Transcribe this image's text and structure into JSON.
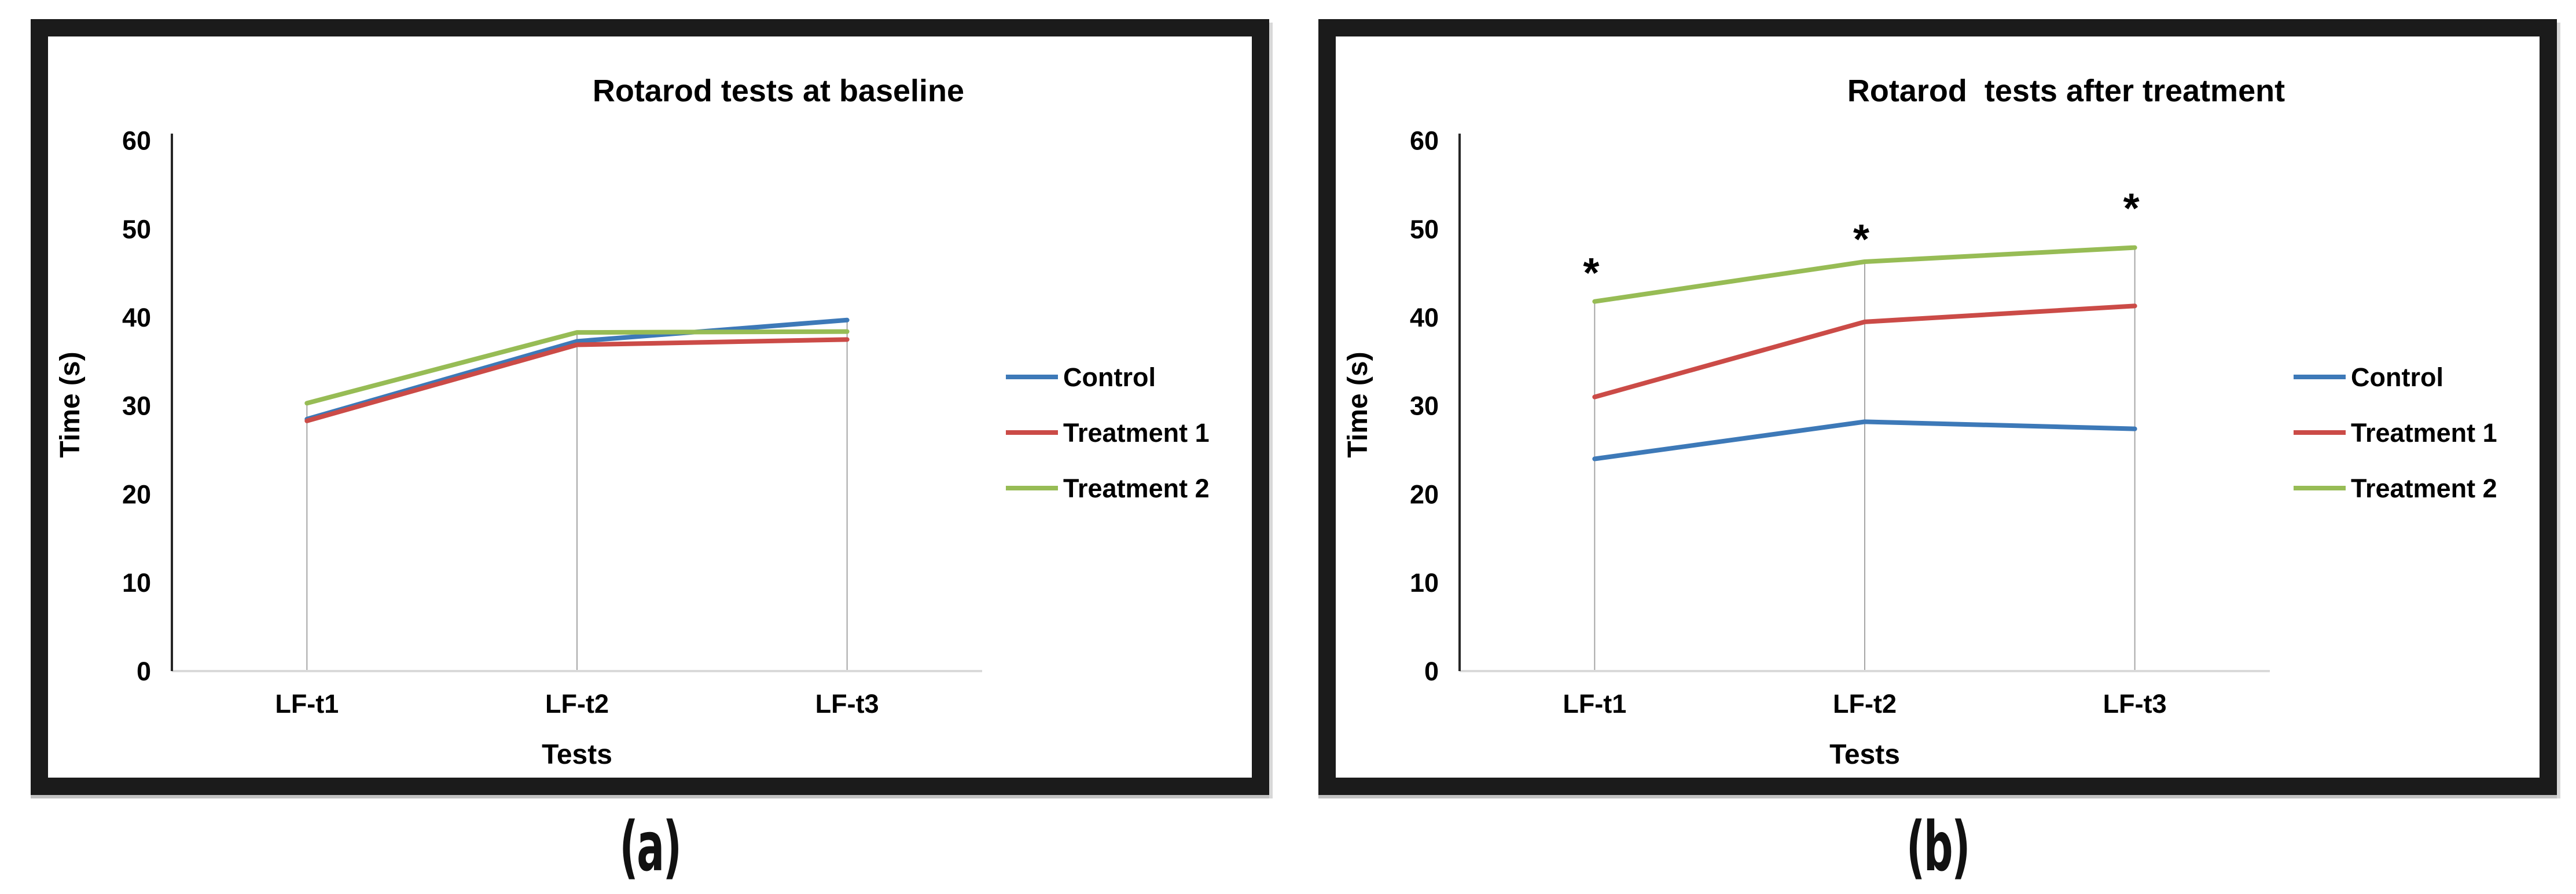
{
  "page": {
    "background": "#ffffff",
    "frame_color": "#1b1b1b"
  },
  "captions": {
    "a": "(a)",
    "b": "(b)"
  },
  "colors": {
    "control": "#3D79B8",
    "treatment1": "#CB4B47",
    "treatment2": "#97BC55",
    "gridline": "#A6A6A6",
    "y_axis": "#262626",
    "x_axis": "#D9D9D9",
    "text": "#000000"
  },
  "chart_data": [
    {
      "id": "baseline",
      "type": "line",
      "title": "Rotarod tests at baseline",
      "xlabel": "Tests",
      "ylabel": "Time (s)",
      "categories": [
        "LF-t1",
        "LF-t2",
        "LF-t3"
      ],
      "ylim": [
        0,
        60
      ],
      "yticks": [
        0,
        10,
        20,
        30,
        40,
        50,
        60
      ],
      "grid": "category-drop-lines",
      "legend_position": "right",
      "series": [
        {
          "name": "Control",
          "color": "#3D79B8",
          "values": [
            28.5,
            37.3,
            39.7
          ]
        },
        {
          "name": "Treatment 1",
          "color": "#CB4B47",
          "values": [
            28.3,
            36.9,
            37.5
          ]
        },
        {
          "name": "Treatment 2",
          "color": "#97BC55",
          "values": [
            30.3,
            38.3,
            38.4
          ]
        }
      ],
      "annotations": []
    },
    {
      "id": "after-treatment",
      "type": "line",
      "title": "Rotarod  tests after treatment",
      "xlabel": "Tests",
      "ylabel": "Time (s)",
      "categories": [
        "LF-t1",
        "LF-t2",
        "LF-t3"
      ],
      "ylim": [
        0,
        60
      ],
      "yticks": [
        0,
        10,
        20,
        30,
        40,
        50,
        60
      ],
      "grid": "category-drop-lines",
      "legend_position": "right",
      "series": [
        {
          "name": "Control",
          "color": "#3D79B8",
          "values": [
            24.0,
            28.2,
            27.4
          ]
        },
        {
          "name": "Treatment 1",
          "color": "#CB4B47",
          "values": [
            31.0,
            39.5,
            41.3
          ]
        },
        {
          "name": "Treatment 2",
          "color": "#97BC55",
          "values": [
            41.8,
            46.3,
            47.9
          ]
        }
      ],
      "annotations": [
        {
          "text": "*",
          "category": "LF-t1",
          "y": 45.2
        },
        {
          "text": "*",
          "category": "LF-t2",
          "y": 49.0
        },
        {
          "text": "*",
          "category": "LF-t3",
          "y": 52.5
        }
      ]
    }
  ]
}
